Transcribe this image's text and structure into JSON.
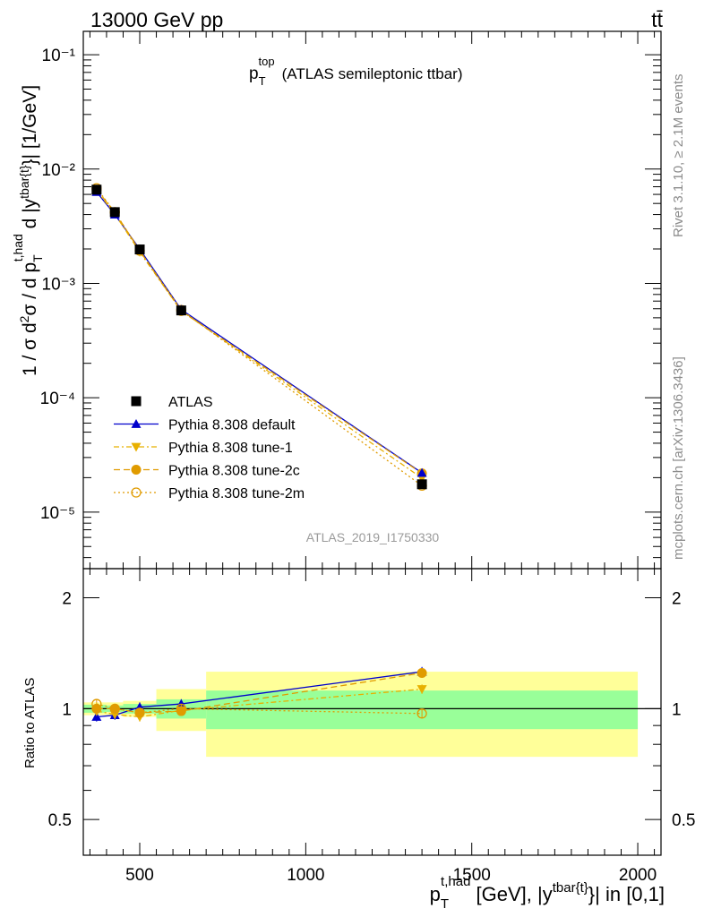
{
  "header": {
    "energy": "13000 GeV pp",
    "process": "tt̄",
    "plot_title_main": "p",
    "plot_title_sub": "T",
    "plot_title_sup": "top",
    "plot_title_rest": "(ATLAS semileptonic ttbar)",
    "analysis_id": "ATLAS_2019_I1750330",
    "rivet_label": "Rivet 3.1.10, ≥ 2.1M events",
    "mcplots_label": "mcplots.cern.ch [arXiv:1306.3436]"
  },
  "axes": {
    "ylabel_main": "1 / σ d²σ / d p_T^{t,had} d |y^{tbar{t}}| [1/GeV]",
    "ylabel_ratio": "Ratio to ATLAS",
    "xlabel": "p_T^{t,had} [GeV], |y^{tbar{t}}| in [0,1]",
    "x_ticks": [
      "500",
      "1000",
      "1500",
      "2000"
    ],
    "y_ticks_main": [
      "10⁻¹",
      "10⁻²",
      "10⁻³",
      "10⁻⁴",
      "10⁻⁵"
    ],
    "y_ticks_ratio": [
      "2",
      "1",
      "0.5"
    ]
  },
  "chart_data": {
    "type": "line",
    "x_scale": "linear",
    "y_scale": "log",
    "xlim": [
      330,
      2070
    ],
    "ylim": [
      3.2e-06,
      0.16
    ],
    "ratio_ylim": [
      0.4,
      2.4
    ],
    "ratio_y_scale": "log",
    "bins": [
      [
        325,
        400
      ],
      [
        400,
        450
      ],
      [
        450,
        550
      ],
      [
        550,
        700
      ],
      [
        700,
        2000
      ]
    ],
    "x": [
      370,
      425,
      500,
      625,
      1350
    ],
    "series": [
      {
        "name": "ATLAS",
        "color": "#000000",
        "marker": "square",
        "values": [
          0.0066,
          0.0042,
          0.00198,
          0.00058,
          1.75e-05
        ],
        "band_inner": [
          0.025,
          0.02,
          0.03,
          0.06,
          0.12
        ],
        "band_outer": [
          0.04,
          0.04,
          0.05,
          0.13,
          0.26
        ]
      },
      {
        "name": "Pythia 8.308 default",
        "color": "#0000cc",
        "marker": "triangle-up",
        "dash": "",
        "values": [
          0.0063,
          0.004,
          0.00199,
          0.00059,
          2.2e-05
        ],
        "ratio": [
          0.95,
          0.96,
          1.01,
          1.03,
          1.26
        ]
      },
      {
        "name": "Pythia 8.308 tune-1",
        "color": "#e8b000",
        "marker": "triangle-down",
        "dash": "6,3,2,3",
        "values": [
          0.0065,
          0.00405,
          0.00188,
          0.000575,
          1.98e-05
        ],
        "ratio": [
          0.985,
          0.965,
          0.95,
          0.99,
          1.13
        ]
      },
      {
        "name": "Pythia 8.308 tune-2c",
        "color": "#e09b00",
        "marker": "circle",
        "dash": "7,4",
        "values": [
          0.0066,
          0.0042,
          0.00193,
          0.000572,
          2.18e-05
        ],
        "ratio": [
          1.0,
          1.0,
          0.975,
          0.985,
          1.25
        ]
      },
      {
        "name": "Pythia 8.308 tune-2m",
        "color": "#e09b00",
        "marker": "circle-open",
        "dash": "2,3",
        "values": [
          0.0068,
          0.0042,
          0.00193,
          0.000585,
          1.7e-05
        ],
        "ratio": [
          1.03,
          1.0,
          0.975,
          1.0,
          0.97
        ]
      }
    ]
  }
}
